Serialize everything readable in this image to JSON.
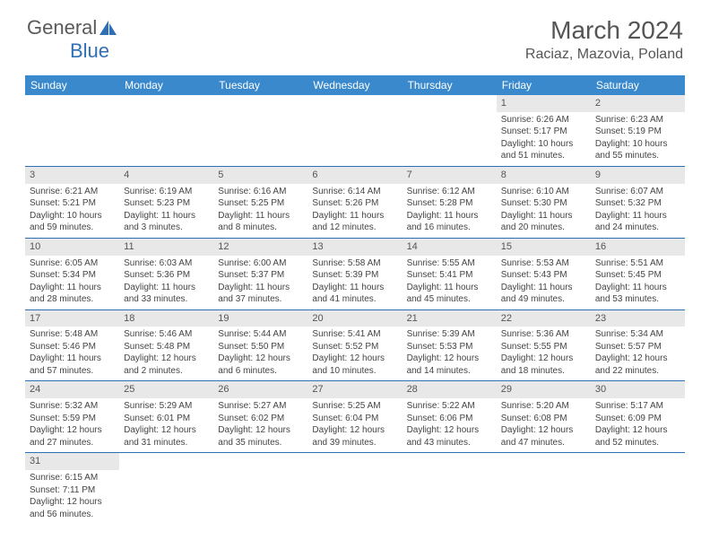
{
  "logo": {
    "text1": "General",
    "text2": "Blue",
    "icon_color": "#2e6fb5"
  },
  "title": "March 2024",
  "location": "Raciaz, Mazovia, Poland",
  "colors": {
    "header_bg": "#3a89cc",
    "header_text": "#ffffff",
    "border": "#2e6fb5",
    "daynum_bg": "#e8e8e8",
    "body_text": "#444444"
  },
  "fonts": {
    "title_pt": 28,
    "location_pt": 16,
    "dayhead_pt": 12,
    "daynum_pt": 11,
    "cell_pt": 10
  },
  "dayNames": [
    "Sunday",
    "Monday",
    "Tuesday",
    "Wednesday",
    "Thursday",
    "Friday",
    "Saturday"
  ],
  "weeks": [
    [
      null,
      null,
      null,
      null,
      null,
      {
        "n": "1",
        "sr": "Sunrise: 6:26 AM",
        "ss": "Sunset: 5:17 PM",
        "dl1": "Daylight: 10 hours",
        "dl2": "and 51 minutes."
      },
      {
        "n": "2",
        "sr": "Sunrise: 6:23 AM",
        "ss": "Sunset: 5:19 PM",
        "dl1": "Daylight: 10 hours",
        "dl2": "and 55 minutes."
      }
    ],
    [
      {
        "n": "3",
        "sr": "Sunrise: 6:21 AM",
        "ss": "Sunset: 5:21 PM",
        "dl1": "Daylight: 10 hours",
        "dl2": "and 59 minutes."
      },
      {
        "n": "4",
        "sr": "Sunrise: 6:19 AM",
        "ss": "Sunset: 5:23 PM",
        "dl1": "Daylight: 11 hours",
        "dl2": "and 3 minutes."
      },
      {
        "n": "5",
        "sr": "Sunrise: 6:16 AM",
        "ss": "Sunset: 5:25 PM",
        "dl1": "Daylight: 11 hours",
        "dl2": "and 8 minutes."
      },
      {
        "n": "6",
        "sr": "Sunrise: 6:14 AM",
        "ss": "Sunset: 5:26 PM",
        "dl1": "Daylight: 11 hours",
        "dl2": "and 12 minutes."
      },
      {
        "n": "7",
        "sr": "Sunrise: 6:12 AM",
        "ss": "Sunset: 5:28 PM",
        "dl1": "Daylight: 11 hours",
        "dl2": "and 16 minutes."
      },
      {
        "n": "8",
        "sr": "Sunrise: 6:10 AM",
        "ss": "Sunset: 5:30 PM",
        "dl1": "Daylight: 11 hours",
        "dl2": "and 20 minutes."
      },
      {
        "n": "9",
        "sr": "Sunrise: 6:07 AM",
        "ss": "Sunset: 5:32 PM",
        "dl1": "Daylight: 11 hours",
        "dl2": "and 24 minutes."
      }
    ],
    [
      {
        "n": "10",
        "sr": "Sunrise: 6:05 AM",
        "ss": "Sunset: 5:34 PM",
        "dl1": "Daylight: 11 hours",
        "dl2": "and 28 minutes."
      },
      {
        "n": "11",
        "sr": "Sunrise: 6:03 AM",
        "ss": "Sunset: 5:36 PM",
        "dl1": "Daylight: 11 hours",
        "dl2": "and 33 minutes."
      },
      {
        "n": "12",
        "sr": "Sunrise: 6:00 AM",
        "ss": "Sunset: 5:37 PM",
        "dl1": "Daylight: 11 hours",
        "dl2": "and 37 minutes."
      },
      {
        "n": "13",
        "sr": "Sunrise: 5:58 AM",
        "ss": "Sunset: 5:39 PM",
        "dl1": "Daylight: 11 hours",
        "dl2": "and 41 minutes."
      },
      {
        "n": "14",
        "sr": "Sunrise: 5:55 AM",
        "ss": "Sunset: 5:41 PM",
        "dl1": "Daylight: 11 hours",
        "dl2": "and 45 minutes."
      },
      {
        "n": "15",
        "sr": "Sunrise: 5:53 AM",
        "ss": "Sunset: 5:43 PM",
        "dl1": "Daylight: 11 hours",
        "dl2": "and 49 minutes."
      },
      {
        "n": "16",
        "sr": "Sunrise: 5:51 AM",
        "ss": "Sunset: 5:45 PM",
        "dl1": "Daylight: 11 hours",
        "dl2": "and 53 minutes."
      }
    ],
    [
      {
        "n": "17",
        "sr": "Sunrise: 5:48 AM",
        "ss": "Sunset: 5:46 PM",
        "dl1": "Daylight: 11 hours",
        "dl2": "and 57 minutes."
      },
      {
        "n": "18",
        "sr": "Sunrise: 5:46 AM",
        "ss": "Sunset: 5:48 PM",
        "dl1": "Daylight: 12 hours",
        "dl2": "and 2 minutes."
      },
      {
        "n": "19",
        "sr": "Sunrise: 5:44 AM",
        "ss": "Sunset: 5:50 PM",
        "dl1": "Daylight: 12 hours",
        "dl2": "and 6 minutes."
      },
      {
        "n": "20",
        "sr": "Sunrise: 5:41 AM",
        "ss": "Sunset: 5:52 PM",
        "dl1": "Daylight: 12 hours",
        "dl2": "and 10 minutes."
      },
      {
        "n": "21",
        "sr": "Sunrise: 5:39 AM",
        "ss": "Sunset: 5:53 PM",
        "dl1": "Daylight: 12 hours",
        "dl2": "and 14 minutes."
      },
      {
        "n": "22",
        "sr": "Sunrise: 5:36 AM",
        "ss": "Sunset: 5:55 PM",
        "dl1": "Daylight: 12 hours",
        "dl2": "and 18 minutes."
      },
      {
        "n": "23",
        "sr": "Sunrise: 5:34 AM",
        "ss": "Sunset: 5:57 PM",
        "dl1": "Daylight: 12 hours",
        "dl2": "and 22 minutes."
      }
    ],
    [
      {
        "n": "24",
        "sr": "Sunrise: 5:32 AM",
        "ss": "Sunset: 5:59 PM",
        "dl1": "Daylight: 12 hours",
        "dl2": "and 27 minutes."
      },
      {
        "n": "25",
        "sr": "Sunrise: 5:29 AM",
        "ss": "Sunset: 6:01 PM",
        "dl1": "Daylight: 12 hours",
        "dl2": "and 31 minutes."
      },
      {
        "n": "26",
        "sr": "Sunrise: 5:27 AM",
        "ss": "Sunset: 6:02 PM",
        "dl1": "Daylight: 12 hours",
        "dl2": "and 35 minutes."
      },
      {
        "n": "27",
        "sr": "Sunrise: 5:25 AM",
        "ss": "Sunset: 6:04 PM",
        "dl1": "Daylight: 12 hours",
        "dl2": "and 39 minutes."
      },
      {
        "n": "28",
        "sr": "Sunrise: 5:22 AM",
        "ss": "Sunset: 6:06 PM",
        "dl1": "Daylight: 12 hours",
        "dl2": "and 43 minutes."
      },
      {
        "n": "29",
        "sr": "Sunrise: 5:20 AM",
        "ss": "Sunset: 6:08 PM",
        "dl1": "Daylight: 12 hours",
        "dl2": "and 47 minutes."
      },
      {
        "n": "30",
        "sr": "Sunrise: 5:17 AM",
        "ss": "Sunset: 6:09 PM",
        "dl1": "Daylight: 12 hours",
        "dl2": "and 52 minutes."
      }
    ],
    [
      {
        "n": "31",
        "sr": "Sunrise: 6:15 AM",
        "ss": "Sunset: 7:11 PM",
        "dl1": "Daylight: 12 hours",
        "dl2": "and 56 minutes."
      },
      null,
      null,
      null,
      null,
      null,
      null
    ]
  ]
}
